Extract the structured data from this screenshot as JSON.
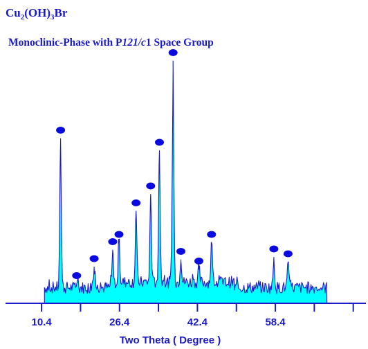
{
  "chart_data": {
    "type": "line",
    "title_parts": {
      "base1": "Cu",
      "sub1": "2",
      "base2": "(OH)",
      "sub2": "3",
      "base3": "Br"
    },
    "subtitle_parts": {
      "pre": "Monoclinic-Phase with P",
      "ital": "121/c",
      "post": "1 Space Group"
    },
    "xlabel": "Two Theta ( Degree )",
    "ylabel": "",
    "xlim": [
      3.0,
      77.0
    ],
    "ylim": [
      0,
      100
    ],
    "xticks": [
      10.4,
      26.4,
      42.4,
      58.4
    ],
    "xtick_labels": [
      "10.4",
      "26.4",
      "42.4",
      "58.4"
    ],
    "minor_xticks": [
      18.4,
      34.4,
      50.4,
      66.4,
      74.4
    ],
    "grid": false,
    "colors": {
      "line": "#1a1ac8",
      "fill": "#00ffff",
      "marker": "#0a0ae0",
      "text": "#1a1ac8",
      "axis": "#1a1ac8"
    },
    "data_start_x": 11.0,
    "data_end_x": 69.0,
    "baseline_level": 6.5,
    "peaks": [
      {
        "x": 14.3,
        "y": 68,
        "marked": true
      },
      {
        "x": 17.6,
        "y": 8,
        "marked": true
      },
      {
        "x": 21.2,
        "y": 15,
        "marked": true
      },
      {
        "x": 25.0,
        "y": 22,
        "marked": true
      },
      {
        "x": 26.3,
        "y": 25,
        "marked": true
      },
      {
        "x": 29.8,
        "y": 38,
        "marked": true
      },
      {
        "x": 32.8,
        "y": 45,
        "marked": true
      },
      {
        "x": 34.6,
        "y": 63,
        "marked": true
      },
      {
        "x": 37.4,
        "y": 100,
        "marked": true
      },
      {
        "x": 39.0,
        "y": 18,
        "marked": true
      },
      {
        "x": 42.7,
        "y": 14,
        "marked": true
      },
      {
        "x": 45.3,
        "y": 25,
        "marked": true
      },
      {
        "x": 58.1,
        "y": 19,
        "marked": true
      },
      {
        "x": 61.0,
        "y": 17,
        "marked": true
      }
    ]
  }
}
